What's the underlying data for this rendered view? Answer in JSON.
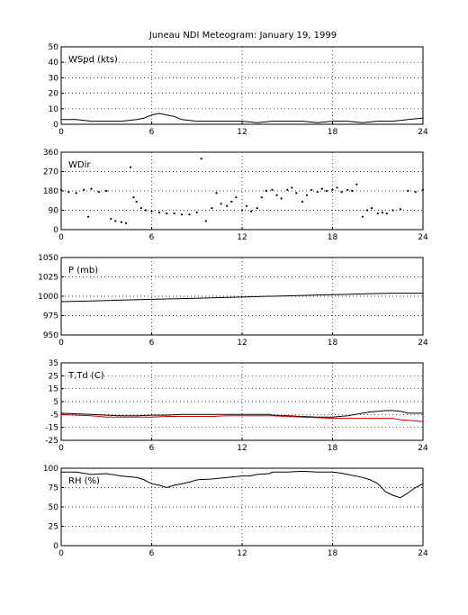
{
  "figure": {
    "title": "Juneau NDI Meteogram:   January 19, 1999"
  },
  "chart_data": [
    {
      "type": "line",
      "label": "WSpd (kts)",
      "xlim": [
        0,
        24
      ],
      "ylim": [
        0,
        50
      ],
      "xticks": [
        0,
        6,
        12,
        18,
        24
      ],
      "yticks": [
        0,
        10,
        20,
        30,
        40,
        50
      ],
      "grid": true,
      "series": [
        {
          "color": "#000000",
          "style": "line",
          "x": [
            0,
            1,
            2,
            3,
            4,
            5,
            5.5,
            6,
            6.5,
            7,
            7.5,
            8,
            9,
            10,
            11,
            12,
            13,
            14,
            15,
            16,
            17,
            18,
            19,
            20,
            21,
            22,
            23,
            24
          ],
          "y": [
            3,
            3,
            2,
            2,
            2,
            3,
            4,
            6,
            7,
            6,
            5,
            3,
            2,
            2,
            2,
            2,
            1,
            2,
            2,
            2,
            1,
            2,
            2,
            1,
            2,
            2,
            3,
            4
          ]
        }
      ]
    },
    {
      "type": "scatter",
      "label": "WDir",
      "xlim": [
        0,
        24
      ],
      "ylim": [
        0,
        360
      ],
      "xticks": [
        0,
        6,
        12,
        18,
        24
      ],
      "yticks": [
        0,
        90,
        180,
        270,
        360
      ],
      "grid": true,
      "series": [
        {
          "color": "#000000",
          "style": "dots",
          "x": [
            0,
            0.5,
            1,
            1.5,
            1.8,
            2,
            2.5,
            3,
            3.3,
            3.6,
            4,
            4.3,
            4.6,
            4.8,
            5,
            5.3,
            5.6,
            6,
            6.5,
            7,
            7.5,
            8,
            8.5,
            9,
            9.3,
            9.6,
            10,
            10.3,
            10.6,
            11,
            11.3,
            11.6,
            12,
            12.3,
            12.6,
            13,
            13.3,
            13.6,
            14,
            14.3,
            14.6,
            15,
            15.3,
            15.6,
            16,
            16.3,
            16.6,
            17,
            17.3,
            17.6,
            18,
            18.3,
            18.6,
            19,
            19.3,
            19.6,
            20,
            20.3,
            20.6,
            21,
            21.3,
            21.6,
            22,
            22.5,
            23,
            23.5,
            24
          ],
          "y": [
            185,
            175,
            170,
            185,
            60,
            190,
            175,
            180,
            50,
            40,
            35,
            30,
            290,
            150,
            130,
            100,
            90,
            85,
            80,
            75,
            75,
            70,
            70,
            80,
            330,
            40,
            100,
            170,
            120,
            110,
            130,
            150,
            90,
            110,
            85,
            100,
            150,
            180,
            185,
            160,
            145,
            185,
            195,
            170,
            130,
            160,
            185,
            175,
            190,
            180,
            185,
            195,
            175,
            185,
            180,
            210,
            60,
            90,
            100,
            75,
            80,
            75,
            90,
            95,
            180,
            175,
            185
          ]
        }
      ]
    },
    {
      "type": "line",
      "label": "P (mb)",
      "xlim": [
        0,
        24
      ],
      "ylim": [
        950,
        1050
      ],
      "xticks": [
        0,
        6,
        12,
        18,
        24
      ],
      "yticks": [
        950,
        975,
        1000,
        1025,
        1050
      ],
      "grid": true,
      "series": [
        {
          "color": "#000000",
          "style": "line",
          "x": [
            0,
            2,
            4,
            6,
            8,
            10,
            12,
            13.8,
            14,
            16,
            18,
            20,
            22,
            24
          ],
          "y": [
            993,
            994,
            995,
            996,
            997,
            998,
            999,
            1000,
            1000,
            1001,
            1002,
            1003,
            1004,
            1004
          ]
        }
      ]
    },
    {
      "type": "line",
      "label": "T,Td (C)",
      "xlim": [
        0,
        24
      ],
      "ylim": [
        -25,
        35
      ],
      "xticks": [
        0,
        6,
        12,
        18,
        24
      ],
      "yticks": [
        -25,
        -15,
        -5,
        5,
        15,
        25,
        35
      ],
      "grid": true,
      "series": [
        {
          "color": "#000000",
          "style": "line",
          "x": [
            0,
            1,
            2,
            3,
            4,
            5,
            6,
            7,
            8,
            9,
            10,
            11,
            12,
            13,
            13.9,
            14,
            15,
            16,
            17,
            18,
            19,
            20,
            20.5,
            21,
            21.5,
            22,
            22.5,
            23,
            23.5,
            24
          ],
          "y": [
            -4,
            -4.5,
            -5,
            -5.5,
            -6,
            -6,
            -5.5,
            -5.5,
            -5,
            -5,
            -5,
            -5,
            -5,
            -5,
            -5,
            -5.5,
            -6,
            -6.5,
            -7,
            -7,
            -6,
            -4,
            -3,
            -2.5,
            -2,
            -2,
            -2.5,
            -4,
            -4,
            -4
          ]
        },
        {
          "color": "#dd0000",
          "style": "line",
          "x": [
            0,
            1,
            2,
            3,
            4,
            5,
            6,
            7,
            8,
            9,
            10,
            11,
            12,
            13,
            13.9,
            14,
            15,
            16,
            17,
            18,
            19,
            20,
            21,
            22,
            22.5,
            23,
            23.5,
            24
          ],
          "y": [
            -5,
            -5.5,
            -6,
            -7,
            -7,
            -7,
            -7,
            -6.5,
            -6.5,
            -6.5,
            -6.5,
            -6,
            -6,
            -6,
            -6,
            -6,
            -6.5,
            -7,
            -7.5,
            -8,
            -8,
            -8,
            -8,
            -8,
            -9,
            -9.5,
            -10,
            -10.5
          ]
        }
      ]
    },
    {
      "type": "line",
      "label": "RH (%)",
      "xlim": [
        0,
        24
      ],
      "ylim": [
        0,
        100
      ],
      "xticks": [
        0,
        6,
        12,
        18,
        24
      ],
      "yticks": [
        0,
        25,
        50,
        75,
        100
      ],
      "grid": true,
      "series": [
        {
          "color": "#000000",
          "style": "line",
          "x": [
            0,
            1,
            2,
            3,
            4,
            5,
            5.5,
            6,
            6.5,
            7,
            7.5,
            8,
            8.5,
            9,
            10,
            11,
            12,
            12.5,
            13,
            13.8,
            14,
            15,
            16,
            17,
            18,
            18.5,
            19,
            20,
            20.5,
            21,
            21.5,
            22,
            22.5,
            23,
            23.5,
            24
          ],
          "y": [
            95,
            95,
            92,
            93,
            90,
            88,
            85,
            80,
            78,
            75,
            78,
            80,
            82,
            85,
            86,
            88,
            90,
            90,
            92,
            93,
            95,
            95,
            96,
            95,
            95,
            94,
            92,
            88,
            85,
            80,
            70,
            65,
            62,
            68,
            75,
            80
          ]
        }
      ]
    }
  ]
}
